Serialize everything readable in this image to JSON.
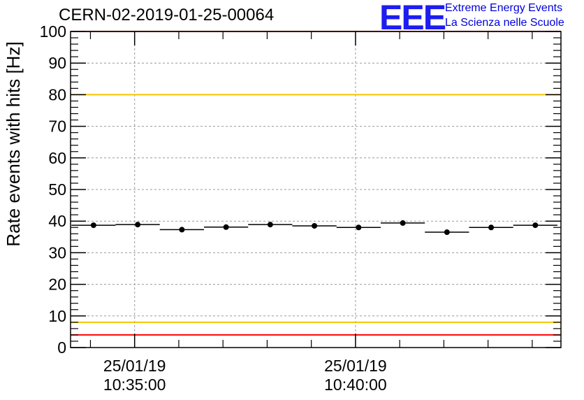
{
  "header": {
    "run_title": "CERN-02-2019-01-25-00064",
    "logo_text": "EEE",
    "logo_line1": "Extreme Energy Events",
    "logo_line2": "La Scienza nelle Scuole"
  },
  "colors": {
    "red_limit": "#ff0000",
    "yellow_limit": "#f5c400",
    "logo": "#1d1df0",
    "grid": "#999999"
  },
  "chart_data": {
    "type": "scatter",
    "title": "CERN-02-2019-01-25-00064",
    "xlabel": "",
    "ylabel": "Rate events with hits [Hz]",
    "ylim": [
      0,
      100
    ],
    "yticks": [
      0,
      10,
      20,
      30,
      40,
      50,
      60,
      70,
      80,
      90,
      100
    ],
    "xlim_minutes": [
      -1.45,
      9.65
    ],
    "xticks": [
      {
        "minute": 0,
        "date": "25/01/19",
        "time": "10:35:00"
      },
      {
        "minute": 5,
        "date": "25/01/19",
        "time": "10:40:00"
      }
    ],
    "bin_width_minutes": 1.0,
    "points": [
      {
        "minute": -0.93,
        "value": 38.7
      },
      {
        "minute": 0.07,
        "value": 38.9
      },
      {
        "minute": 1.07,
        "value": 37.3
      },
      {
        "minute": 2.07,
        "value": 38.1
      },
      {
        "minute": 3.07,
        "value": 38.9
      },
      {
        "minute": 4.07,
        "value": 38.5
      },
      {
        "minute": 5.07,
        "value": 38.0
      },
      {
        "minute": 6.07,
        "value": 39.4
      },
      {
        "minute": 7.07,
        "value": 36.5
      },
      {
        "minute": 8.07,
        "value": 38.0
      },
      {
        "minute": 9.07,
        "value": 38.7
      }
    ],
    "reference_lines": [
      {
        "value": 100,
        "color": "red"
      },
      {
        "value": 80,
        "color": "yellow"
      },
      {
        "value": 8,
        "color": "yellow"
      },
      {
        "value": 4,
        "color": "red"
      }
    ],
    "grid": true
  }
}
